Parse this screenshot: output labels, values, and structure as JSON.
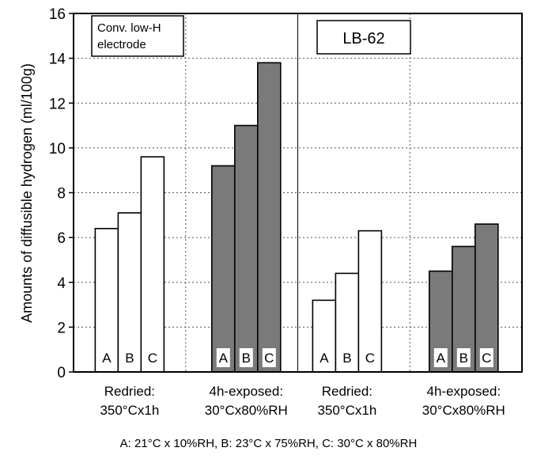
{
  "chart_data": {
    "type": "bar",
    "ylabel": "Amounts of diffusible hydrogen (ml/100g)",
    "ylim": [
      0,
      16
    ],
    "yticks": [
      "0",
      "2",
      "4",
      "6",
      "8",
      "10",
      "12",
      "14",
      "16"
    ],
    "grid": true,
    "panels": [
      {
        "box_label": [
          "Conv. low-H",
          "electrode"
        ],
        "groups": [
          {
            "label": [
              "Redried:",
              "350°Cx1h"
            ],
            "letters": [
              "A",
              "B",
              "C"
            ],
            "values": [
              6.4,
              7.1,
              9.6
            ],
            "color": "#ffffff"
          },
          {
            "label": [
              "4h-exposed:",
              "30°Cx80%RH"
            ],
            "letters": [
              "A",
              "B",
              "C"
            ],
            "values": [
              9.2,
              11.0,
              13.8
            ],
            "color": "#7a7a7a"
          }
        ]
      },
      {
        "box_label": [
          "LB-62"
        ],
        "groups": [
          {
            "label": [
              "Redried:",
              "350°Cx1h"
            ],
            "letters": [
              "A",
              "B",
              "C"
            ],
            "values": [
              3.2,
              4.4,
              6.3
            ],
            "color": "#ffffff"
          },
          {
            "label": [
              "4h-exposed:",
              "30°Cx80%RH"
            ],
            "letters": [
              "A",
              "B",
              "C"
            ],
            "values": [
              4.5,
              5.6,
              6.6
            ],
            "color": "#7a7a7a"
          }
        ]
      }
    ],
    "footnote": "A: 21°C x 10%RH,  B: 23°C x 75%RH,   C: 30°C x 80%RH"
  }
}
